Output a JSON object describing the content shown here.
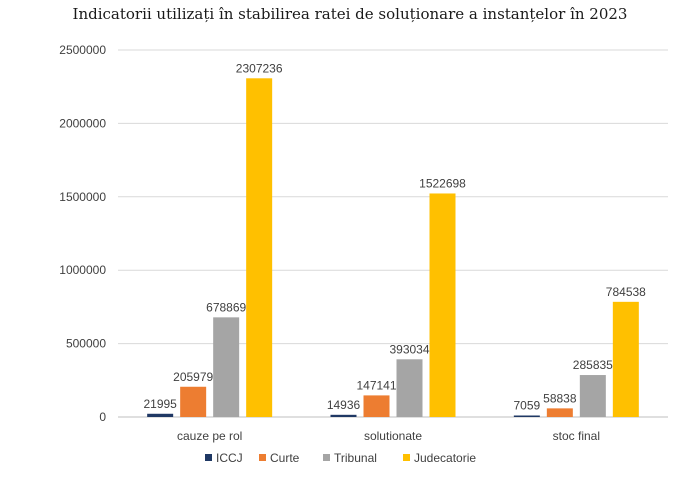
{
  "chart_data": {
    "type": "bar",
    "title": "Indicatorii utilizați în stabilirea ratei de soluționare a instanțelor în 2023",
    "xlabel": "",
    "ylabel": "",
    "categories": [
      "cauze pe rol",
      "solutionate",
      "stoc final"
    ],
    "series": [
      {
        "name": "ICCJ",
        "color": "#1f3864",
        "values": [
          21995,
          14936,
          7059
        ]
      },
      {
        "name": "Curte",
        "color": "#ed7d31",
        "values": [
          205979,
          147141,
          58838
        ]
      },
      {
        "name": "Tribunal",
        "color": "#a5a5a5",
        "values": [
          678869,
          393034,
          285835
        ]
      },
      {
        "name": "Judecatorie",
        "color": "#ffc000",
        "values": [
          2307236,
          1522698,
          784538
        ]
      }
    ],
    "ylim": [
      0,
      2500000
    ],
    "yticks": [
      0,
      500000,
      1000000,
      1500000,
      2000000,
      2500000
    ],
    "yticklabels": [
      "0",
      "500000",
      "1000000",
      "1500000",
      "2000000",
      "2500000"
    ],
    "grid": true,
    "legend_position": "bottom"
  }
}
